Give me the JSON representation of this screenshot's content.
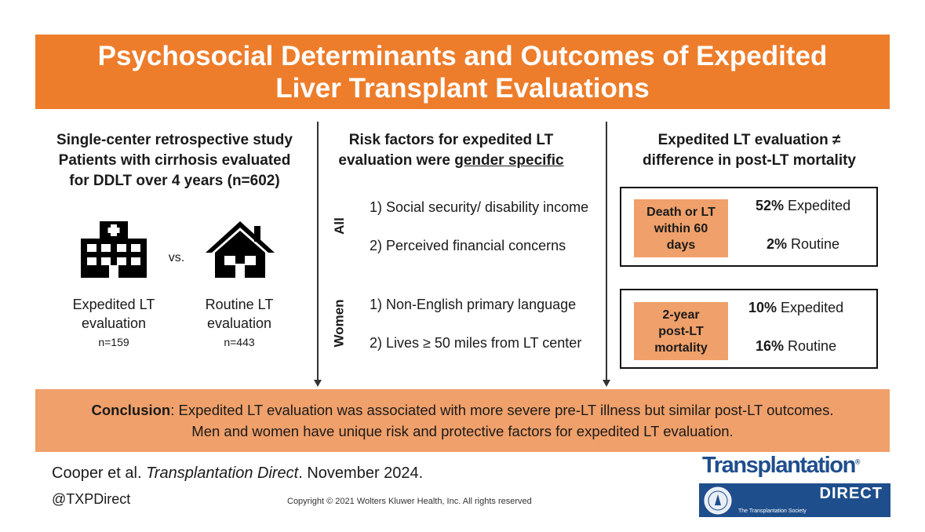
{
  "header": {
    "title_line1": "Psychosocial Determinants and Outcomes of Expedited",
    "title_line2": "Liver Transplant Evaluations"
  },
  "left_panel": {
    "line1": "Single-center retrospective study",
    "line2": "Patients with cirrhosis evaluated",
    "line3": "for DDLT over 4 years (n=602)",
    "vs_label": "vs.",
    "expedited": {
      "icon": "hospital-icon",
      "label_line1": "Expedited LT",
      "label_line2": "evaluation",
      "n": "n=159"
    },
    "routine": {
      "icon": "house-icon",
      "label_line1": "Routine LT",
      "label_line2": "evaluation",
      "n": "n=443"
    }
  },
  "middle_panel": {
    "heading_line1": "Risk factors for expedited LT",
    "heading_prefix": "evaluation were ",
    "heading_emphasis": "gender specific",
    "groups": [
      {
        "label": "All",
        "items": [
          "1) Social security/ disability income",
          "2) Perceived financial concerns"
        ]
      },
      {
        "label": "Women",
        "items": [
          "1) Non-English primary language",
          "2) Lives ≥ 50 miles from LT center"
        ]
      }
    ]
  },
  "right_panel": {
    "heading_line1": "Expedited LT evaluation ≠",
    "heading_line2": "difference in post-LT mortality",
    "outcomes": [
      {
        "label_lines": [
          "Death or LT",
          "within 60",
          "days"
        ],
        "expedited_pct": "52%",
        "expedited_label": " Expedited",
        "routine_pct": "2%",
        "routine_label": " Routine"
      },
      {
        "label_lines": [
          "2-year",
          "post-LT",
          "mortality"
        ],
        "expedited_pct": "10%",
        "expedited_label": " Expedited",
        "routine_pct": "16%",
        "routine_label": " Routine"
      }
    ]
  },
  "conclusion": {
    "prefix": "Conclusion",
    "line1_rest": ": Expedited LT evaluation was associated with more severe pre-LT illness but similar post-LT outcomes.",
    "line2": "Men and women have unique risk and protective factors for expedited LT evaluation."
  },
  "footer": {
    "citation_author": "Cooper et al. ",
    "citation_journal": "Transplantation Direct",
    "citation_date": ". November 2024.",
    "handle": "@TXPDirect",
    "copyright": "Copyright © 2021  Wolters Kluwer Health, Inc. All rights reserved",
    "logo": {
      "name": "Transplantation",
      "registered": "®",
      "sub": "DIRECT",
      "society": "The Transplantation Society"
    }
  },
  "colors": {
    "banner": "#ed7d2b",
    "light_orange": "#f0a06a",
    "logo_blue": "#1f4e8c"
  }
}
